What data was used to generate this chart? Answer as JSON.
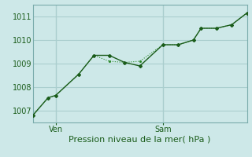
{
  "background_color": "#cde8e8",
  "grid_color": "#aacece",
  "line_color_dark": "#1a5c1a",
  "line_color_light": "#2e8b2e",
  "xlabel": "Pression niveau de la mer( hPa )",
  "ylim": [
    1006.5,
    1011.5
  ],
  "yticks": [
    1007,
    1008,
    1009,
    1010,
    1011
  ],
  "xlim": [
    0,
    14
  ],
  "xtick_positions": [
    1.5,
    8.5
  ],
  "xtick_labels": [
    "Ven",
    "Sam"
  ],
  "vlines": [
    1.5,
    8.5
  ],
  "series1_x": [
    0,
    1,
    1.5,
    3,
    4,
    5,
    6,
    7,
    8.5,
    9.5,
    10.5,
    11,
    12,
    13,
    14
  ],
  "series1_y": [
    1006.8,
    1007.55,
    1007.65,
    1008.55,
    1009.35,
    1009.35,
    1009.05,
    1008.9,
    1009.8,
    1009.8,
    1010.0,
    1010.5,
    1010.5,
    1010.65,
    1011.15
  ],
  "series2_x": [
    0,
    1,
    1.5,
    3,
    4,
    5,
    6,
    7,
    8.5,
    9.5,
    10.5,
    11,
    12,
    13,
    14
  ],
  "series2_y": [
    1006.8,
    1007.55,
    1007.65,
    1008.55,
    1009.35,
    1009.1,
    1009.05,
    1009.1,
    1009.8,
    1009.8,
    1010.0,
    1010.5,
    1010.5,
    1010.65,
    1011.15
  ],
  "ylabel_fontsize": 7,
  "xlabel_fontsize": 8,
  "tick_fontsize": 7
}
